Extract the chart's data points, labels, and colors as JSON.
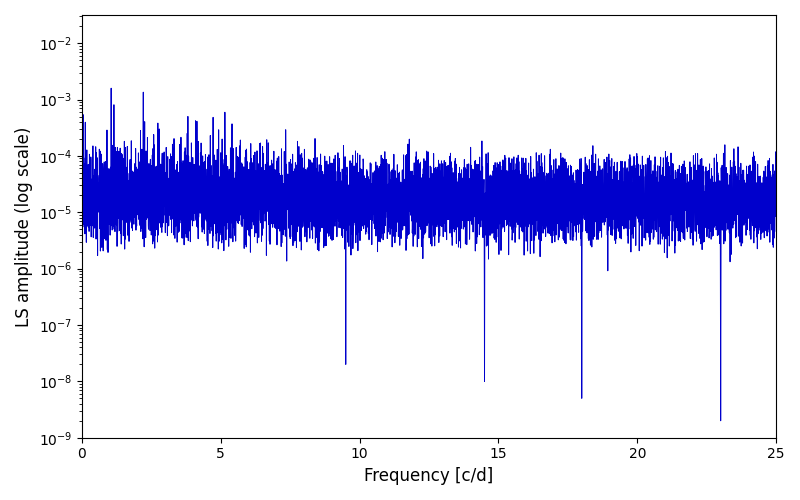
{
  "line_color": "#0000cc",
  "line_width": 0.7,
  "xlabel": "Frequency [c/d]",
  "ylabel": "LS amplitude (log scale)",
  "xlim": [
    0,
    25
  ],
  "ylim_log_min": -9.0,
  "ylim_log_max": -1.5,
  "yscale": "log",
  "background_color": "#ffffff",
  "figsize": [
    8.0,
    5.0
  ],
  "dpi": 100,
  "seed": 17,
  "n_points": 4000,
  "freq_max": 25.0
}
